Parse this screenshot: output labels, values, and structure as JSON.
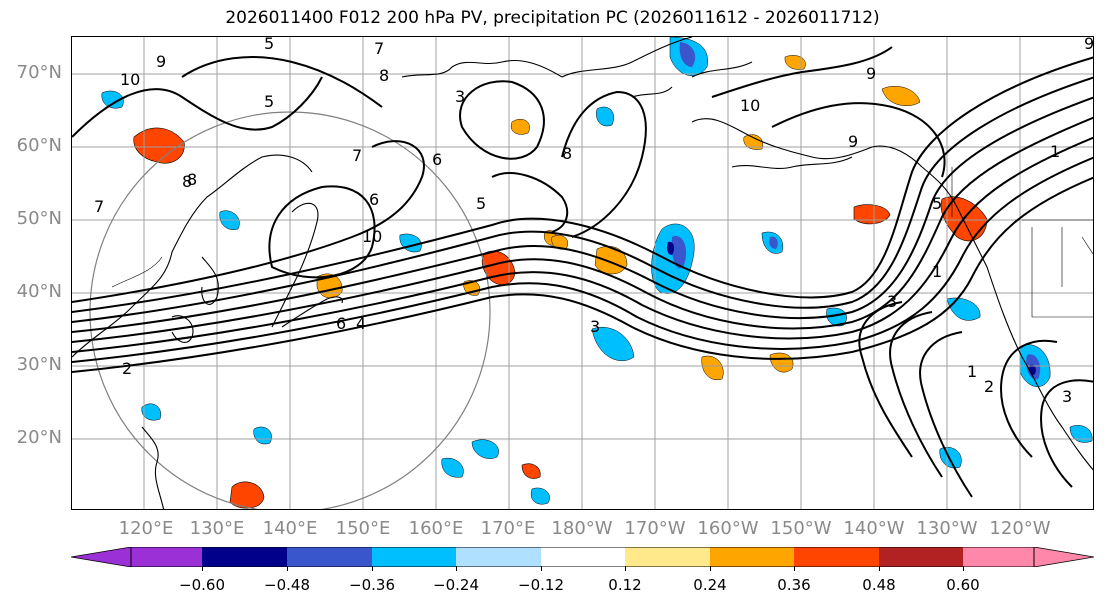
{
  "title": "2026011400 F012 200 hPa PV, precipitation PC (2026011612 - 2026011712)",
  "lat_labels": [
    "70°N",
    "60°N",
    "50°N",
    "40°N",
    "30°N",
    "20°N"
  ],
  "lon_labels": [
    "120°E",
    "130°E",
    "140°E",
    "150°E",
    "160°E",
    "170°E",
    "180°W",
    "170°W",
    "160°W",
    "150°W",
    "140°W",
    "130°W",
    "120°W"
  ],
  "colorbar": {
    "ticks": [
      "−0.60",
      "−0.48",
      "−0.36",
      "−0.24",
      "−0.12",
      "0.12",
      "0.24",
      "0.36",
      "0.48",
      "0.60"
    ],
    "colors": [
      "#9b30d6",
      "#00008b",
      "#3a56cc",
      "#00bfff",
      "#b0e0ff",
      "#ffffff",
      "#ffe98a",
      "#ffa500",
      "#ff4500",
      "#b22222",
      "#ff88aa"
    ]
  },
  "contour_labels": [
    "10",
    "9",
    "8",
    "7",
    "6",
    "5",
    "4",
    "3",
    "2",
    "1"
  ],
  "map_contour_labels": [
    {
      "text": "10",
      "cls": "c10"
    },
    {
      "text": "9",
      "cls": "c9"
    },
    {
      "text": "5",
      "cls": "c5a"
    },
    {
      "text": "7",
      "cls": "c7a"
    },
    {
      "text": "8",
      "cls": "c8a"
    },
    {
      "text": "5",
      "cls": "c5b"
    },
    {
      "text": "3",
      "cls": "c3a"
    },
    {
      "text": "6",
      "cls": "c6a"
    },
    {
      "text": "7",
      "cls": "c7b"
    },
    {
      "text": "8",
      "cls": "c8b"
    },
    {
      "text": "5",
      "cls": "c5c"
    },
    {
      "text": "6",
      "cls": "c6b"
    },
    {
      "text": "10",
      "cls": "c10b"
    },
    {
      "text": "4",
      "cls": "c4a"
    },
    {
      "text": "6",
      "cls": "c6c"
    },
    {
      "text": "2",
      "cls": "c2a"
    },
    {
      "text": "3",
      "cls": "c3b"
    },
    {
      "text": "8",
      "cls": "c8c"
    },
    {
      "text": "10",
      "cls": "c10c"
    },
    {
      "text": "9",
      "cls": "c9b"
    },
    {
      "text": "9",
      "cls": "c9c"
    },
    {
      "text": "8",
      "cls": "c8d"
    },
    {
      "text": "7",
      "cls": "c7c"
    },
    {
      "text": "1",
      "cls": "c1a"
    },
    {
      "text": "5",
      "cls": "c5d"
    },
    {
      "text": "3",
      "cls": "c3c"
    },
    {
      "text": "1",
      "cls": "c1b"
    },
    {
      "text": "2",
      "cls": "c2b"
    },
    {
      "text": "3",
      "cls": "c3d"
    },
    {
      "text": "1",
      "cls": "c1c"
    },
    {
      "text": "9",
      "cls": "c9d"
    }
  ],
  "colors": {
    "positive_precip": "#ffa500",
    "negative_precip": "#00bfff",
    "contour": "#000000",
    "grid": "#a0a0a0"
  }
}
